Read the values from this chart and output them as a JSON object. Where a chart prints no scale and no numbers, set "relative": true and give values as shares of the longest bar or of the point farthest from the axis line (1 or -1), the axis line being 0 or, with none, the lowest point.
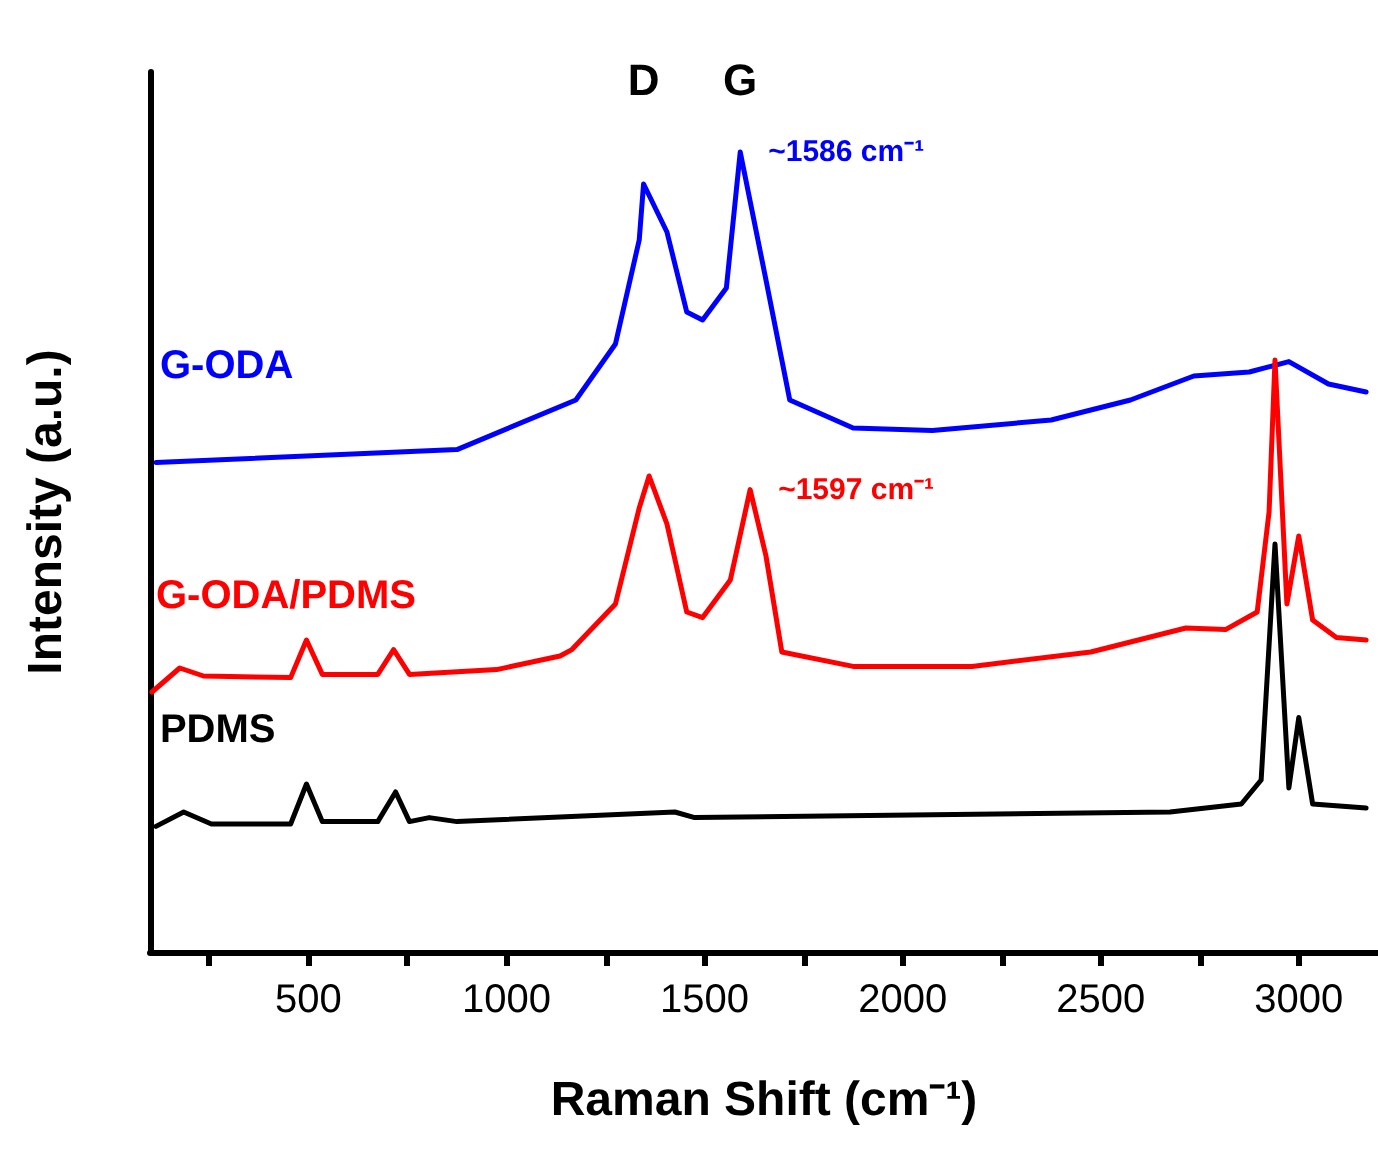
{
  "chart_data": {
    "type": "line",
    "relative": true,
    "xlabel": "Raman Shift (cm⁻¹)",
    "ylabel": "Intensity (a.u.)",
    "xlim": [
      100,
      3200
    ],
    "xticks": [
      {
        "value": 250,
        "label": null
      },
      500,
      {
        "value": 750,
        "label": null
      },
      1000,
      {
        "value": 1250,
        "label": null
      },
      1500,
      {
        "value": 1750,
        "label": null
      },
      2000,
      {
        "value": 2250,
        "label": null
      },
      2500,
      {
        "value": 2750,
        "label": null
      },
      3000
    ],
    "legend": false,
    "grid": false,
    "marker": "none",
    "line_style": "solid",
    "annotations": [
      {
        "text": "D",
        "x": 1346,
        "y": 0.96
      },
      {
        "text": "G",
        "x": 1590,
        "y": 1.0
      },
      {
        "text": "~1586 cm⁻¹",
        "x": 1590,
        "y": 1.0
      },
      {
        "text": "~1597 cm⁻¹",
        "x": 1615,
        "y": 0.578
      }
    ],
    "series": [
      {
        "name": "G-ODA",
        "color": "#0000ff",
        "x": [
          115,
          875,
          1175,
          1275,
          1335,
          1346,
          1405,
          1455,
          1495,
          1555,
          1590,
          1655,
          1715,
          1875,
          2075,
          2375,
          2575,
          2735,
          2875,
          2975,
          3075,
          3170
        ],
        "values": [
          0.612,
          0.628,
          0.69,
          0.76,
          0.89,
          0.96,
          0.9,
          0.8,
          0.79,
          0.83,
          1.0,
          0.84,
          0.69,
          0.655,
          0.652,
          0.665,
          0.69,
          0.72,
          0.725,
          0.738,
          0.71,
          0.7
        ]
      },
      {
        "name": "G-ODA/PDMS",
        "color": "#ff0000",
        "x": [
          105,
          175,
          235,
          455,
          495,
          535,
          675,
          715,
          755,
          975,
          1135,
          1165,
          1275,
          1335,
          1360,
          1405,
          1455,
          1495,
          1565,
          1615,
          1655,
          1695,
          1875,
          2175,
          2475,
          2715,
          2815,
          2895,
          2925,
          2940,
          2970,
          3000,
          3035,
          3095,
          3170
        ],
        "values": [
          0.325,
          0.355,
          0.345,
          0.343,
          0.39,
          0.347,
          0.347,
          0.378,
          0.347,
          0.353,
          0.37,
          0.378,
          0.435,
          0.555,
          0.595,
          0.535,
          0.425,
          0.418,
          0.465,
          0.578,
          0.495,
          0.375,
          0.357,
          0.357,
          0.375,
          0.405,
          0.403,
          0.425,
          0.55,
          0.74,
          0.435,
          0.52,
          0.415,
          0.393,
          0.39
        ]
      },
      {
        "name": "PDMS",
        "color": "#000000",
        "x": [
          115,
          185,
          255,
          455,
          495,
          535,
          675,
          720,
          755,
          805,
          875,
          1425,
          1475,
          2675,
          2855,
          2905,
          2940,
          2975,
          3000,
          3035,
          3170
        ],
        "values": [
          0.157,
          0.175,
          0.16,
          0.16,
          0.21,
          0.163,
          0.163,
          0.2,
          0.163,
          0.168,
          0.163,
          0.175,
          0.168,
          0.175,
          0.185,
          0.215,
          0.51,
          0.205,
          0.293,
          0.185,
          0.18
        ]
      }
    ]
  }
}
